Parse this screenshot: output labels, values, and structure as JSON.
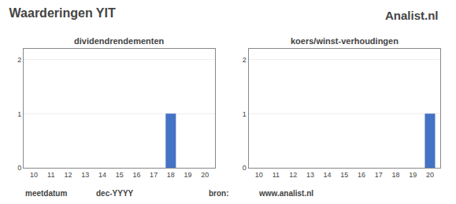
{
  "title": "Waarderingen YIT",
  "annotations": [
    "Analist.nl",
    "meetdatum",
    "dec-YYYY",
    "bron:",
    "www.analist.nl"
  ],
  "chart_data": [
    {
      "type": "bar",
      "title": "dividendrendementen",
      "x": [
        10,
        11,
        12,
        13,
        14,
        15,
        16,
        17,
        18,
        19,
        20
      ],
      "values": [
        0,
        0,
        0,
        0,
        0,
        0,
        0,
        0,
        1.0,
        0,
        0
      ],
      "color": "#4472c4",
      "xlim": [
        9.4,
        20.6
      ],
      "xticks": [
        10,
        11,
        12,
        13,
        14,
        15,
        16,
        17,
        18,
        19,
        20
      ],
      "ylim": [
        0,
        2.2
      ],
      "yticks": [
        0,
        1,
        2
      ],
      "grid": true
    },
    {
      "type": "bar",
      "title": "koers/winst-verhoudingen",
      "x": [
        10,
        11,
        12,
        13,
        14,
        15,
        16,
        17,
        18,
        19,
        20
      ],
      "values": [
        0,
        0,
        0,
        0,
        0,
        0,
        0,
        0,
        0,
        0,
        1.0
      ],
      "color": "#4472c4",
      "xlim": [
        9.4,
        20.6
      ],
      "xticks": [
        10,
        11,
        12,
        13,
        14,
        15,
        16,
        17,
        18,
        19,
        20
      ],
      "ylim": [
        0,
        2.2
      ],
      "yticks": [
        0,
        1,
        2
      ],
      "grid": true
    }
  ]
}
